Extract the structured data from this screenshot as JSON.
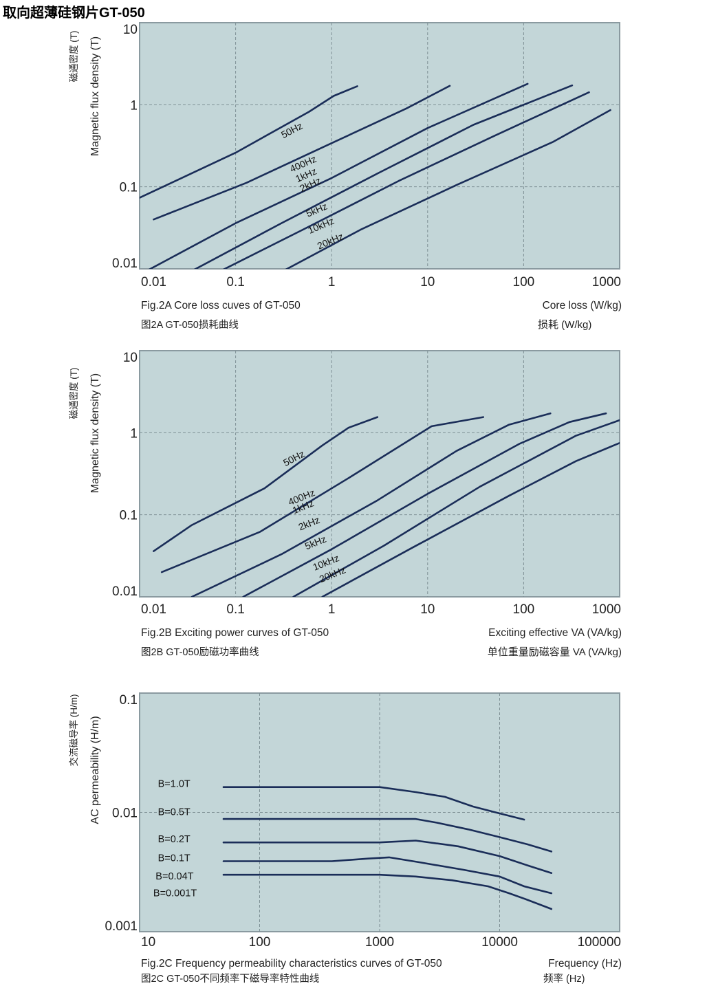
{
  "page_title": "取向超薄硅钢片GT-050",
  "colors": {
    "plot_bg": "#c3d6d8",
    "curve": "#1a2d58",
    "grid": "#7d8f94",
    "frame": "#8a9aa0"
  },
  "chart_data": [
    {
      "id": "fig2a",
      "type": "line",
      "xscale": "log",
      "yscale": "log",
      "xlim": [
        0.01,
        1000
      ],
      "ylim": [
        0.01,
        10
      ],
      "xticks": [
        0.01,
        0.1,
        1,
        10,
        100,
        1000
      ],
      "xtick_labels": [
        "0.01",
        "0.1",
        "1",
        "10",
        "100",
        "1000"
      ],
      "yticks": [
        0.01,
        0.1,
        1,
        10
      ],
      "ytick_labels": [
        "0.01",
        "0.1",
        "1",
        "10"
      ],
      "ylabel_cn": "磁通密度  (T)",
      "ylabel": "Magnetic flux density (T)",
      "caption_en": "Fig.2A Core loss cuves of GT-050",
      "caption_cn": "图2A GT-050损耗曲线",
      "xlabel_en": "Core loss (W/kg)",
      "xlabel_cn": "损耗  (W/kg)",
      "series": [
        {
          "name": "50Hz",
          "points": [
            [
              0.0082,
              0.066
            ],
            [
              0.1,
              0.26
            ],
            [
              0.58,
              0.82
            ],
            [
              1.05,
              1.28
            ],
            [
              1.85,
              1.68
            ]
          ]
        },
        {
          "name": "400Hz",
          "points": [
            [
              0.014,
              0.04
            ],
            [
              0.13,
              0.112
            ],
            [
              1.0,
              0.34
            ],
            [
              6.0,
              0.9
            ],
            [
              17,
              1.7
            ]
          ]
        },
        {
          "name": "1kHz",
          "points": [
            [
              0.0082,
              0.0075
            ],
            [
              0.1,
              0.036
            ],
            [
              1.0,
              0.128
            ],
            [
              10,
              0.52
            ],
            [
              110,
              1.8
            ]
          ]
        },
        {
          "name": "2kHz",
          "points": [
            [
              0.028,
              0.0082
            ],
            [
              0.3,
              0.036
            ],
            [
              3.0,
              0.145
            ],
            [
              30,
              0.57
            ],
            [
              320,
              1.72
            ]
          ]
        },
        {
          "name": "5kHz",
          "points": [
            [
              0.055,
              0.0082
            ],
            [
              0.5,
              0.03
            ],
            [
              5.0,
              0.118
            ],
            [
              50,
              0.42
            ],
            [
              480,
              1.42
            ]
          ]
        },
        {
          "name": "10kHz",
          "points": [
            [
              0.25,
              0.0082
            ],
            [
              2.0,
              0.03
            ],
            [
              20,
              0.105
            ],
            [
              200,
              0.35
            ],
            [
              800,
              0.86
            ]
          ]
        },
        {
          "name": "20kHz",
          "points": []
        }
      ],
      "labels": [
        {
          "text": "50Hz",
          "at": [
            0.4,
            0.45
          ],
          "angle": -28
        },
        {
          "text": "400Hz",
          "at": [
            0.52,
            0.175
          ],
          "angle": -24
        },
        {
          "text": "1kHz",
          "at": [
            0.56,
            0.128
          ],
          "angle": -24
        },
        {
          "text": "2kHz",
          "at": [
            0.62,
            0.098
          ],
          "angle": -24
        },
        {
          "text": "5kHz",
          "at": [
            0.72,
            0.048
          ],
          "angle": -23
        },
        {
          "text": "10kHz",
          "at": [
            0.8,
            0.031
          ],
          "angle": -23
        },
        {
          "text": "20kHz",
          "at": [
            1.0,
            0.02
          ],
          "angle": -23
        }
      ]
    },
    {
      "id": "fig2b",
      "type": "line",
      "xscale": "log",
      "yscale": "log",
      "xlim": [
        0.01,
        1000
      ],
      "ylim": [
        0.01,
        10
      ],
      "xticks": [
        0.01,
        0.1,
        1,
        10,
        100,
        1000
      ],
      "xtick_labels": [
        "0.01",
        "0.1",
        "1",
        "10",
        "100",
        "1000"
      ],
      "yticks": [
        0.01,
        0.1,
        1,
        10
      ],
      "ytick_labels": [
        "0.01",
        "0.1",
        "1",
        "10"
      ],
      "ylabel_cn": "磁通密度  (T)",
      "ylabel": "Magnetic flux density (T)",
      "caption_en": "Fig.2B Exciting power curves of GT-050",
      "caption_cn": "图2B GT-050励磁功率曲线",
      "xlabel_en": "Exciting effective VA (VA/kg)",
      "xlabel_cn": "单位重量励磁容量 VA  (VA/kg)",
      "series": [
        {
          "name": "50Hz",
          "points": [
            [
              0.014,
              0.036
            ],
            [
              0.035,
              0.075
            ],
            [
              0.2,
              0.21
            ],
            [
              0.8,
              0.7
            ],
            [
              1.5,
              1.15
            ],
            [
              3.0,
              1.55
            ]
          ]
        },
        {
          "name": "400Hz",
          "points": [
            [
              0.017,
              0.02
            ],
            [
              0.18,
              0.062
            ],
            [
              1.5,
              0.28
            ],
            [
              11,
              1.2
            ],
            [
              38,
              1.55
            ]
          ]
        },
        {
          "name": "1kHz",
          "points": [
            [
              0.035,
              0.01
            ],
            [
              0.3,
              0.033
            ],
            [
              3.0,
              0.15
            ],
            [
              20,
              0.6
            ],
            [
              70,
              1.25
            ],
            [
              190,
              1.72
            ]
          ]
        },
        {
          "name": "2kHz",
          "points": [
            [
              0.12,
              0.01
            ],
            [
              1.0,
              0.038
            ],
            [
              10,
              0.18
            ],
            [
              90,
              0.73
            ],
            [
              300,
              1.35
            ],
            [
              720,
              1.72
            ]
          ]
        },
        {
          "name": "5kHz",
          "points": [
            [
              0.4,
              0.01
            ],
            [
              3.5,
              0.042
            ],
            [
              35,
              0.22
            ],
            [
              350,
              0.92
            ],
            [
              1100,
              1.48
            ]
          ]
        },
        {
          "name": "10kHz",
          "points": [
            [
              0.8,
              0.01
            ],
            [
              7.0,
              0.04
            ],
            [
              70,
              0.17
            ],
            [
              350,
              0.45
            ],
            [
              1200,
              0.82
            ]
          ]
        },
        {
          "name": "20kHz",
          "points": []
        }
      ],
      "labels": [
        {
          "text": "50Hz",
          "at": [
            0.42,
            0.45
          ],
          "angle": -28
        },
        {
          "text": "400Hz",
          "at": [
            0.5,
            0.15
          ],
          "angle": -22
        },
        {
          "text": "1kHz",
          "at": [
            0.52,
            0.115
          ],
          "angle": -22
        },
        {
          "text": "2kHz",
          "at": [
            0.6,
            0.072
          ],
          "angle": -22
        },
        {
          "text": "5kHz",
          "at": [
            0.7,
            0.042
          ],
          "angle": -22
        },
        {
          "text": "10kHz",
          "at": [
            0.9,
            0.024
          ],
          "angle": -22
        },
        {
          "text": "20kHz",
          "at": [
            1.05,
            0.0172
          ],
          "angle": -22
        }
      ]
    },
    {
      "id": "fig2c",
      "type": "line",
      "xscale": "log",
      "yscale": "log",
      "xlim": [
        10,
        100000
      ],
      "ylim": [
        0.001,
        0.1
      ],
      "xticks": [
        10,
        100,
        1000,
        10000,
        100000
      ],
      "xtick_labels": [
        "10",
        "100",
        "1000",
        "10000",
        "100000"
      ],
      "yticks": [
        0.001,
        0.01,
        0.1
      ],
      "ytick_labels": [
        "0.001",
        "0.01",
        "0.1"
      ],
      "ylabel_cn": "交流磁导率  (H/m)",
      "ylabel": "AC permeability (H/m)",
      "caption_en": "Fig.2C Frequency permeability characteristics curves of GT-050",
      "caption_cn": "图2C GT-050不同频率下磁导率特性曲线",
      "xlabel_en": "Frequency (Hz)",
      "xlabel_cn": "频率  (Hz)",
      "series": [
        {
          "name": "B=1.0T",
          "points": [
            [
              50,
              0.0163
            ],
            [
              1000,
              0.0163
            ],
            [
              2000,
              0.0148
            ],
            [
              3500,
              0.0135
            ],
            [
              6000,
              0.0112
            ],
            [
              10000,
              0.0098
            ],
            [
              16000,
              0.0087
            ]
          ]
        },
        {
          "name": "B=0.5T",
          "points": [
            [
              50,
              0.0088
            ],
            [
              2000,
              0.0088
            ],
            [
              3000,
              0.0082
            ],
            [
              5500,
              0.0072
            ],
            [
              10000,
              0.0062
            ],
            [
              17000,
              0.0054
            ],
            [
              27000,
              0.0047
            ]
          ]
        },
        {
          "name": "B=0.2T",
          "points": [
            [
              50,
              0.0056
            ],
            [
              1000,
              0.0056
            ],
            [
              2000,
              0.0058
            ],
            [
              4500,
              0.0052
            ],
            [
              10000,
              0.0043
            ],
            [
              17000,
              0.0036
            ],
            [
              27000,
              0.0031
            ]
          ]
        },
        {
          "name": "B=0.1T",
          "points": [
            [
              50,
              0.0039
            ],
            [
              400,
              0.0039
            ],
            [
              800,
              0.0041
            ],
            [
              1200,
              0.0042
            ],
            [
              2200,
              0.0038
            ],
            [
              5000,
              0.0033
            ],
            [
              10000,
              0.0029
            ],
            [
              16000,
              0.0024
            ],
            [
              27000,
              0.0021
            ]
          ]
        },
        {
          "name": "B=0.04T",
          "points": [
            [
              50,
              0.003
            ],
            [
              1000,
              0.003
            ],
            [
              2000,
              0.0029
            ],
            [
              4000,
              0.0027
            ],
            [
              8000,
              0.0024
            ],
            [
              12000,
              0.0021
            ],
            [
              17000,
              0.00185
            ],
            [
              27000,
              0.00155
            ]
          ]
        },
        {
          "name": "B=0.001T",
          "points": []
        }
      ],
      "labels": [
        {
          "text": "B=1.0T",
          "at": [
            14.2,
            0.0163
          ],
          "angle": 0
        },
        {
          "text": "B=0.5T",
          "at": [
            14.2,
            0.0095
          ],
          "angle": 0
        },
        {
          "text": "B=0.2T",
          "at": [
            14.2,
            0.0056
          ],
          "angle": 0
        },
        {
          "text": "B=0.1T",
          "at": [
            14.2,
            0.0039
          ],
          "angle": 0
        },
        {
          "text": "B=0.04T",
          "at": [
            13.6,
            0.00275
          ],
          "angle": 0
        },
        {
          "text": "B=0.001T",
          "at": [
            13.0,
            0.00198
          ],
          "angle": 0
        }
      ]
    }
  ]
}
